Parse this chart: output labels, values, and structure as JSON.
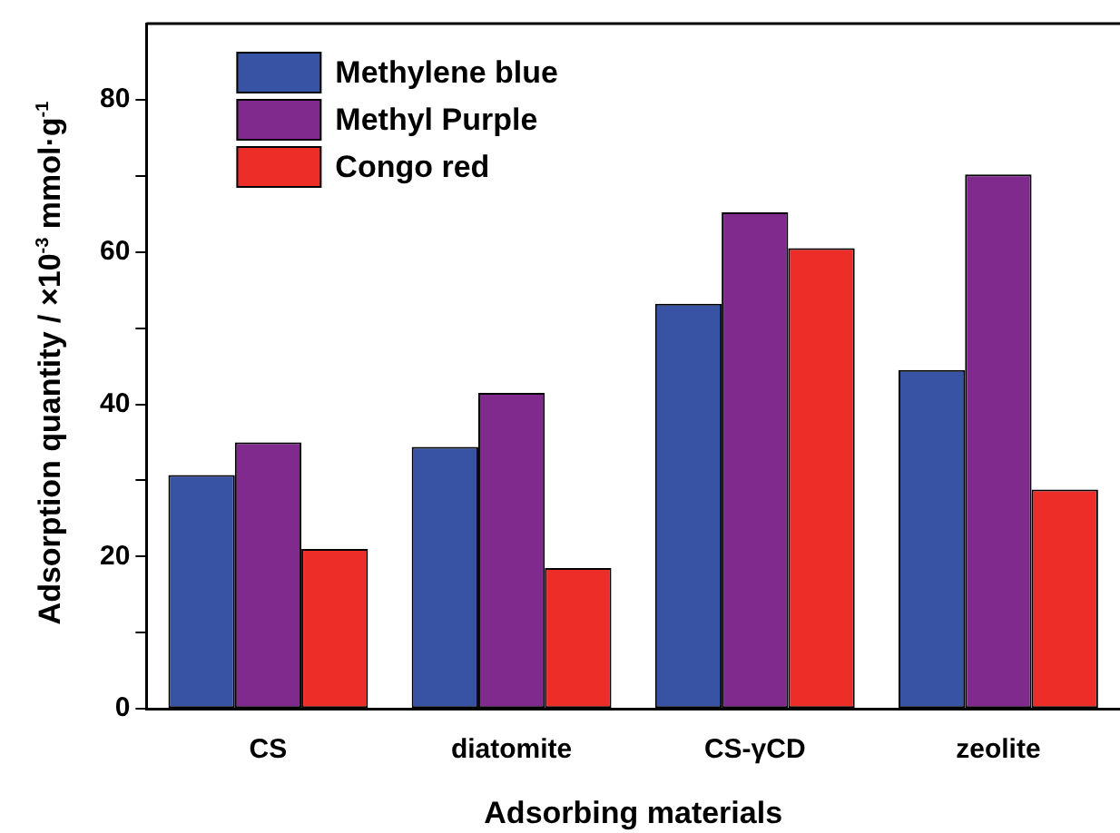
{
  "chart_data": {
    "type": "bar",
    "xlabel": "Adsorbing materials",
    "ylabel": "Adsorption quantity / ×10$^{-3}$ mmol·g$^{-1}$",
    "categories": [
      "CS",
      "diatomite",
      "CS-γCD",
      "zeolite"
    ],
    "series": [
      {
        "name": "Methylene blue",
        "color": "#3953a4",
        "values": [
          30.7,
          34.4,
          53.2,
          44.5
        ]
      },
      {
        "name": "Methyl Purple",
        "color": "#7f2a8c",
        "values": [
          35.0,
          41.5,
          65.2,
          70.2
        ]
      },
      {
        "name": "Congo red",
        "color": "#ec2d28",
        "values": [
          21.0,
          18.5,
          60.5,
          28.8
        ]
      }
    ],
    "ylim": [
      0,
      90
    ],
    "yticks": [
      0,
      {
        "value": 10,
        "label": null
      },
      20,
      {
        "value": 30,
        "label": null
      },
      40,
      {
        "value": 50,
        "label": null
      },
      60,
      {
        "value": 70,
        "label": null
      },
      80
    ],
    "grid": false,
    "legend": "top left"
  }
}
